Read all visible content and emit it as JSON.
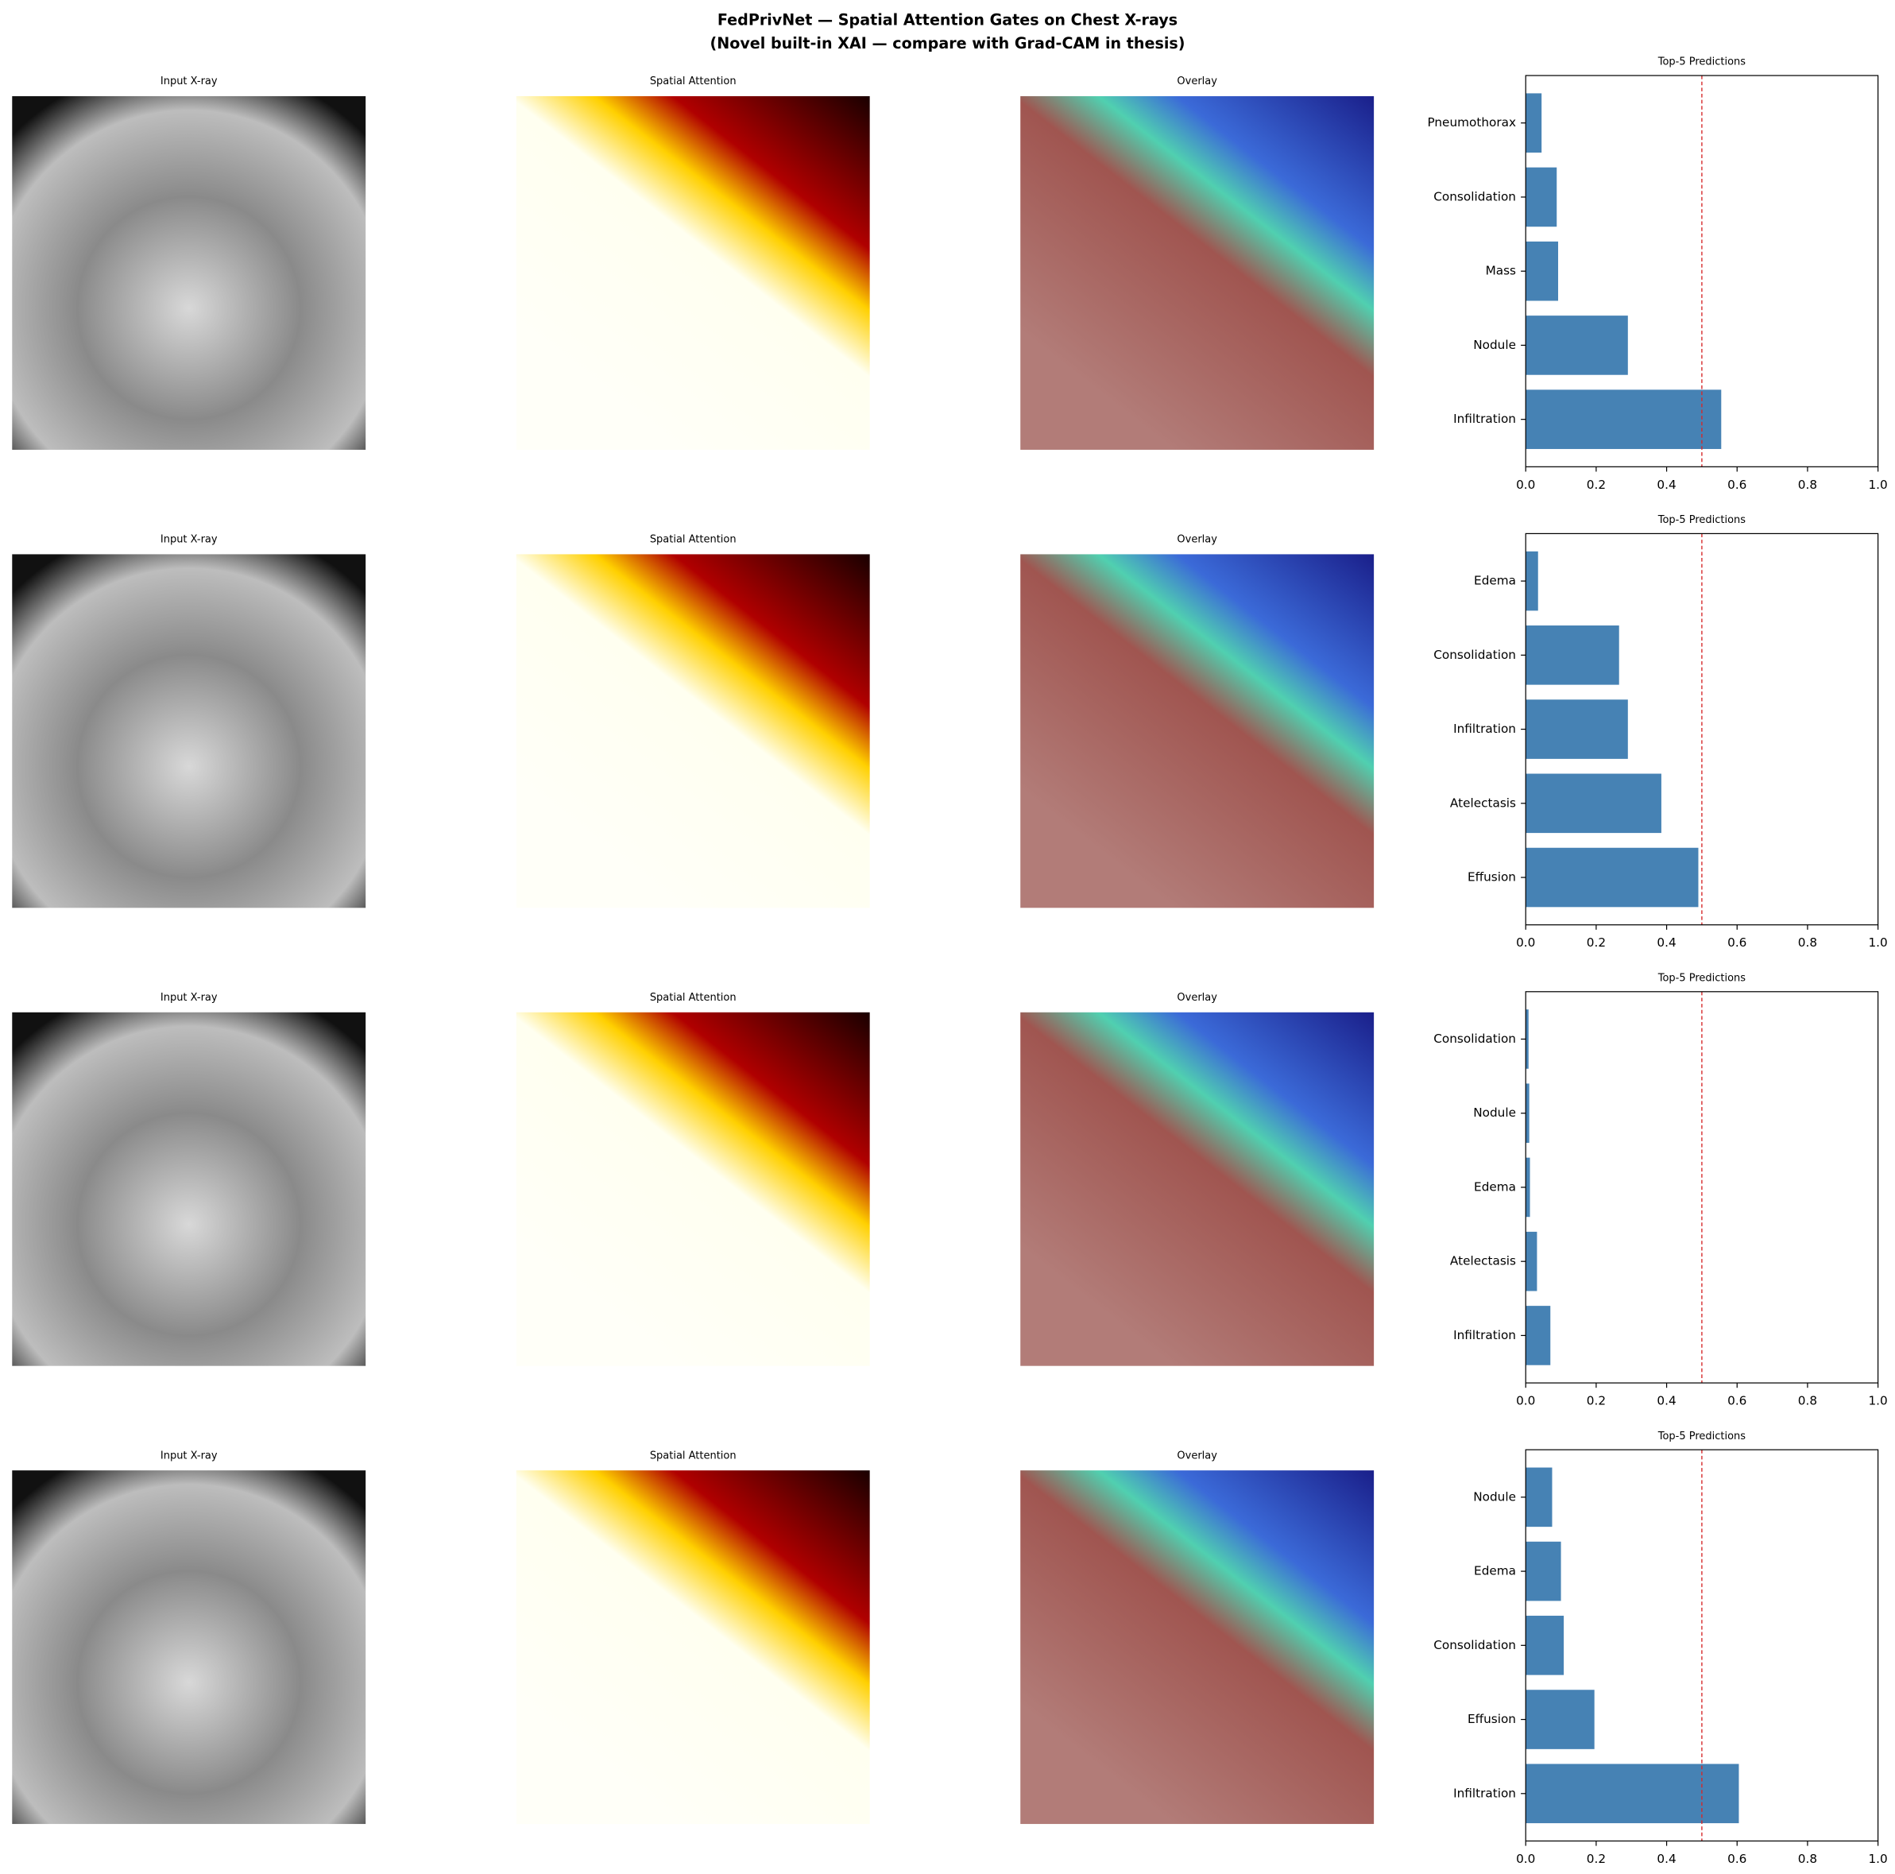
{
  "title": "FedPrivNet — Spatial Attention Gates on Chest X-rays",
  "subtitle": "(Novel built-in XAI — compare with Grad-CAM in thesis)",
  "rows": [
    {
      "panels": [
        "Input X-ray",
        "Spatial Attention",
        "Overlay"
      ]
    },
    {
      "panels": [
        "Input X-ray",
        "Spatial Attention",
        "Overlay"
      ]
    },
    {
      "panels": [
        "Input X-ray",
        "Spatial Attention",
        "Overlay"
      ]
    },
    {
      "panels": [
        "Input X-ray",
        "Spatial Attention",
        "Overlay"
      ]
    }
  ],
  "chart_data": [
    {
      "type": "barh",
      "title": "Top-5 Predictions",
      "categories": [
        "Infiltration",
        "Nodule",
        "Mass",
        "Consolidation",
        "Pneumothorax"
      ],
      "values": [
        0.555,
        0.29,
        0.092,
        0.088,
        0.045
      ],
      "color": "#4682b4",
      "threshold": 0.5,
      "threshold_color": "#d62728",
      "xlim": [
        0,
        1
      ],
      "xticks": [
        {
          "value": 0,
          "label": "0.0"
        },
        0.2,
        0.4,
        0.6,
        0.8,
        {
          "value": 1,
          "label": "1.0"
        }
      ]
    },
    {
      "type": "barh",
      "title": "Top-5 Predictions",
      "categories": [
        "Effusion",
        "Atelectasis",
        "Infiltration",
        "Consolidation",
        "Edema"
      ],
      "values": [
        0.49,
        0.385,
        0.29,
        0.265,
        0.035
      ],
      "color": "#4682b4",
      "threshold": 0.5,
      "threshold_color": "#d62728",
      "xlim": [
        0,
        1
      ],
      "xticks": [
        {
          "value": 0,
          "label": "0.0"
        },
        0.2,
        0.4,
        0.6,
        0.8,
        {
          "value": 1,
          "label": "1.0"
        }
      ]
    },
    {
      "type": "barh",
      "title": "Top-5 Predictions",
      "categories": [
        "Infiltration",
        "Atelectasis",
        "Edema",
        "Nodule",
        "Consolidation"
      ],
      "values": [
        0.07,
        0.032,
        0.012,
        0.01,
        0.008
      ],
      "color": "#4682b4",
      "threshold": 0.5,
      "threshold_color": "#d62728",
      "xlim": [
        0,
        1
      ],
      "xticks": [
        {
          "value": 0,
          "label": "0.0"
        },
        0.2,
        0.4,
        0.6,
        0.8,
        {
          "value": 1,
          "label": "1.0"
        }
      ]
    },
    {
      "type": "barh",
      "title": "Top-5 Predictions",
      "categories": [
        "Infiltration",
        "Effusion",
        "Consolidation",
        "Edema",
        "Nodule"
      ],
      "values": [
        0.605,
        0.195,
        0.108,
        0.1,
        0.075
      ],
      "color": "#4682b4",
      "threshold": 0.5,
      "threshold_color": "#d62728",
      "xlim": [
        0,
        1
      ],
      "xticks": [
        {
          "value": 0,
          "label": "0.0"
        },
        0.2,
        0.4,
        0.6,
        0.8,
        {
          "value": 1,
          "label": "1.0"
        }
      ]
    }
  ]
}
